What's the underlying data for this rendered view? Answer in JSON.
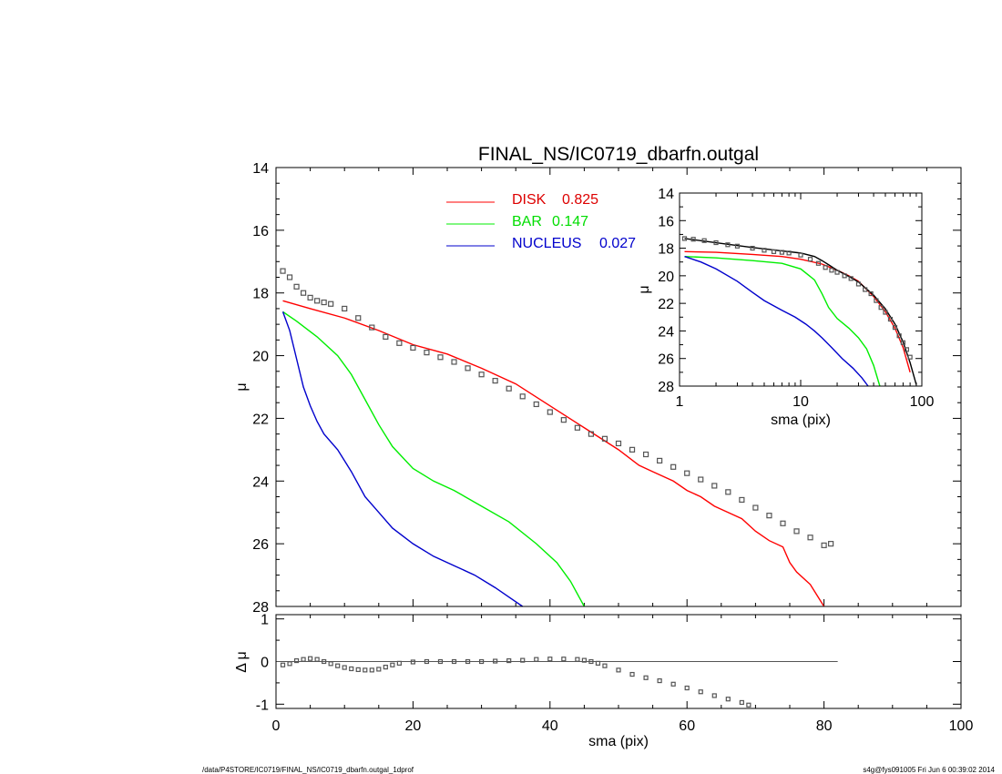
{
  "title": "FINAL_NS/IC0719_dbarfn.outgal",
  "footer": {
    "left": "/data/P4STORE/IC0719/FINAL_NS/IC0719_dbarfn.outgal_1dprof",
    "right": "s4g@fys091005  Fri Jun  6 00:39:02 2014"
  },
  "chart_data": [
    {
      "type": "line",
      "panel": "main",
      "title": "FINAL_NS/IC0719_dbarfn.outgal",
      "xlabel": "",
      "ylabel": "μ",
      "xlim": [
        0,
        100
      ],
      "ylim": [
        28,
        14
      ],
      "yticks": [
        14,
        16,
        18,
        20,
        22,
        24,
        26,
        28
      ],
      "legend_position": "top-center",
      "series": [
        {
          "name": "DISK",
          "value_label": "0.825",
          "color": "#ff0000",
          "x": [
            1,
            5,
            10,
            15,
            20,
            25,
            30,
            35,
            40,
            45,
            50,
            53,
            55,
            58,
            60,
            62,
            64,
            66,
            68,
            70,
            72,
            74,
            75,
            76,
            78,
            80
          ],
          "y": [
            18.25,
            18.5,
            18.8,
            19.2,
            19.65,
            19.95,
            20.4,
            20.9,
            21.6,
            22.3,
            23.0,
            23.5,
            23.7,
            24.0,
            24.3,
            24.5,
            24.8,
            25.0,
            25.2,
            25.6,
            25.9,
            26.1,
            26.6,
            26.9,
            27.3,
            28.0
          ]
        },
        {
          "name": "BAR",
          "value_label": "0.147",
          "color": "#00ee00",
          "x": [
            1,
            3,
            6,
            9,
            11,
            13,
            15,
            17,
            20,
            23,
            26,
            30,
            34,
            38,
            41,
            43,
            45
          ],
          "y": [
            18.6,
            18.9,
            19.4,
            20.0,
            20.6,
            21.4,
            22.2,
            22.9,
            23.6,
            24.0,
            24.3,
            24.8,
            25.3,
            26.0,
            26.6,
            27.2,
            28.0
          ]
        },
        {
          "name": "NUCLEUS",
          "value_label": "0.027",
          "color": "#0000cc",
          "x": [
            1,
            2,
            3,
            4,
            5,
            6,
            7,
            9,
            11,
            13,
            15,
            17,
            20,
            23,
            26,
            29,
            32,
            34,
            36
          ],
          "y": [
            18.6,
            19.2,
            20.1,
            21.0,
            21.6,
            22.1,
            22.5,
            23.0,
            23.7,
            24.5,
            25.0,
            25.5,
            26.0,
            26.4,
            26.7,
            27.0,
            27.4,
            27.7,
            28.0
          ]
        },
        {
          "name": "",
          "style": "markers",
          "color": "#555555",
          "x": [
            1,
            2,
            3,
            4,
            5,
            6,
            7,
            8,
            10,
            12,
            14,
            16,
            18,
            20,
            22,
            24,
            26,
            28,
            30,
            32,
            34,
            36,
            38,
            40,
            42,
            44,
            46,
            48,
            50,
            52,
            54,
            56,
            58,
            60,
            62,
            64,
            66,
            68,
            70,
            72,
            74,
            76,
            78,
            80,
            81
          ],
          "y": [
            17.3,
            17.5,
            17.8,
            18.0,
            18.15,
            18.25,
            18.3,
            18.35,
            18.5,
            18.8,
            19.1,
            19.4,
            19.6,
            19.75,
            19.9,
            20.05,
            20.2,
            20.4,
            20.6,
            20.8,
            21.05,
            21.3,
            21.55,
            21.8,
            22.05,
            22.3,
            22.5,
            22.65,
            22.8,
            23.0,
            23.15,
            23.35,
            23.55,
            23.75,
            23.95,
            24.15,
            24.35,
            24.6,
            24.85,
            25.1,
            25.35,
            25.6,
            25.8,
            26.05,
            26.0
          ]
        }
      ]
    },
    {
      "type": "line",
      "panel": "inset",
      "xlabel": "sma (pix)",
      "ylabel": "μ",
      "xscale": "log",
      "xlim": [
        1,
        100
      ],
      "ylim": [
        28,
        14
      ],
      "xticks": [
        1,
        10,
        100
      ],
      "yticks": [
        14,
        16,
        18,
        20,
        22,
        24,
        26,
        28
      ],
      "series": [
        {
          "name": "DISK",
          "color": "#ff0000",
          "x": [
            1.1,
            2,
            4,
            7,
            10,
            15,
            20,
            25,
            30,
            40,
            50,
            60,
            70,
            80
          ],
          "y": [
            18.25,
            18.3,
            18.45,
            18.6,
            18.8,
            19.15,
            19.6,
            20.0,
            20.4,
            21.5,
            22.6,
            23.8,
            25.2,
            27.0
          ]
        },
        {
          "name": "BAR",
          "color": "#00ee00",
          "x": [
            1.1,
            2,
            4,
            7,
            10,
            13,
            15,
            17,
            20,
            25,
            30,
            35,
            40,
            45
          ],
          "y": [
            18.6,
            18.7,
            18.9,
            19.1,
            19.5,
            20.3,
            21.3,
            22.3,
            23.1,
            23.8,
            24.5,
            25.3,
            26.5,
            28.0
          ]
        },
        {
          "name": "NUCLEUS",
          "color": "#0000cc",
          "x": [
            1.1,
            1.5,
            2,
            3,
            4,
            5,
            7,
            9,
            11,
            13,
            15,
            18,
            22,
            27,
            32,
            36
          ],
          "y": [
            18.6,
            19.0,
            19.5,
            20.4,
            21.2,
            21.8,
            22.5,
            23.0,
            23.5,
            24.0,
            24.5,
            25.2,
            26.0,
            26.7,
            27.4,
            28.0
          ]
        },
        {
          "name": "",
          "style": "line",
          "color": "#000000",
          "x": [
            1.1,
            2,
            4,
            7,
            10,
            13,
            15,
            17,
            20,
            25,
            30,
            40,
            50,
            60,
            70,
            80,
            90
          ],
          "y": [
            17.3,
            17.6,
            17.95,
            18.2,
            18.35,
            18.6,
            18.9,
            19.2,
            19.6,
            20.05,
            20.45,
            21.4,
            22.4,
            23.5,
            24.8,
            26.3,
            27.9
          ]
        },
        {
          "name": "",
          "style": "markers",
          "color": "#555555",
          "x": [
            1.1,
            1.3,
            1.6,
            2,
            2.5,
            3,
            4,
            5,
            6,
            7,
            8,
            10,
            12,
            14,
            16,
            18,
            20,
            23,
            26,
            30,
            34,
            38,
            42,
            46,
            50,
            55,
            60,
            65,
            70,
            75,
            80
          ],
          "y": [
            17.3,
            17.35,
            17.45,
            17.6,
            17.75,
            17.85,
            18.0,
            18.15,
            18.25,
            18.3,
            18.35,
            18.5,
            18.8,
            19.1,
            19.4,
            19.6,
            19.75,
            20.0,
            20.2,
            20.6,
            21.0,
            21.3,
            21.8,
            22.3,
            22.65,
            23.15,
            23.75,
            24.35,
            24.85,
            25.35,
            25.9
          ]
        }
      ]
    },
    {
      "type": "scatter",
      "panel": "residual",
      "xlabel": "sma (pix)",
      "ylabel": "Δ μ",
      "xlim": [
        0,
        100
      ],
      "ylim": [
        -1.1,
        1.1
      ],
      "xticks": [
        0,
        20,
        40,
        60,
        80,
        100
      ],
      "yticks": [
        -1,
        0,
        1
      ],
      "zero_line_xrange": [
        0,
        82
      ],
      "series": [
        {
          "name": "",
          "style": "markers",
          "color": "#555555",
          "x": [
            1,
            2,
            3,
            4,
            5,
            6,
            7,
            8,
            9,
            10,
            11,
            12,
            13,
            14,
            15,
            16,
            17,
            18,
            20,
            22,
            24,
            26,
            28,
            30,
            32,
            34,
            36,
            38,
            40,
            42,
            44,
            45,
            46,
            47,
            48,
            50,
            52,
            54,
            56,
            58,
            60,
            62,
            64,
            66,
            68,
            69
          ],
          "y": [
            -0.08,
            -0.05,
            0.02,
            0.05,
            0.07,
            0.05,
            0.0,
            -0.05,
            -0.1,
            -0.14,
            -0.17,
            -0.19,
            -0.2,
            -0.2,
            -0.18,
            -0.13,
            -0.08,
            -0.04,
            -0.01,
            0.0,
            0.0,
            0.0,
            0.0,
            0.0,
            0.01,
            0.02,
            0.03,
            0.05,
            0.06,
            0.06,
            0.05,
            0.03,
            0.0,
            -0.04,
            -0.1,
            -0.2,
            -0.3,
            -0.38,
            -0.45,
            -0.53,
            -0.62,
            -0.71,
            -0.8,
            -0.88,
            -0.96,
            -1.02
          ]
        }
      ]
    }
  ]
}
